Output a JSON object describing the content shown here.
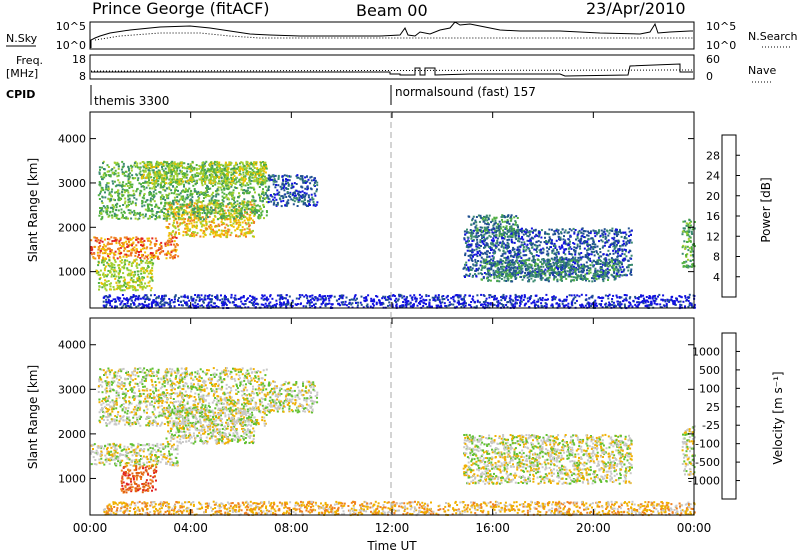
{
  "header": {
    "station": "Prince George (fitACF)",
    "beam": "Beam 00",
    "date": "23/Apr/2010"
  },
  "top_panels": {
    "nsky_label": "N.Sky",
    "nsky_ticks": [
      "10^5",
      "10^0"
    ],
    "nsearch_label": "N.Search",
    "nsearch_ticks": [
      "10^5",
      "10^0"
    ],
    "freq_label_1": "Freq.",
    "freq_label_2": "[MHz]",
    "freq_ticks": [
      "18",
      "8"
    ],
    "nave_label": "Nave",
    "nave_ticks": [
      "60",
      "0"
    ],
    "cpid_label": "CPID",
    "cpid_segments": [
      {
        "label": "themis 3300",
        "start_hour": 0
      },
      {
        "label": "normalsound (fast) 157",
        "start_hour": 12
      }
    ]
  },
  "chart_data": [
    {
      "type": "heatmap",
      "name": "power",
      "ylabel": "Slant Range [km]",
      "ylim": [
        180,
        4600
      ],
      "yticks": [
        "1000",
        "2000",
        "3000",
        "4000"
      ],
      "xlim": [
        0,
        24
      ],
      "colorbar_label": "Power [dB]",
      "colorbar_ticks": [
        "4",
        "8",
        "12",
        "16",
        "20",
        "24",
        "28"
      ],
      "colorbar_colors": [
        "#1010e0",
        "#205090",
        "#3a8a70",
        "#50b040",
        "#a0d030",
        "#f0c000",
        "#f08020",
        "#e02020"
      ],
      "regions": [
        {
          "x0": 0.0,
          "x1": 3.5,
          "y0": 1300,
          "y1": 1800,
          "level": 6
        },
        {
          "x0": 3.0,
          "x1": 6.5,
          "y0": 1800,
          "y1": 2600,
          "level": 5
        },
        {
          "x0": 0.3,
          "x1": 7.0,
          "y0": 2200,
          "y1": 3500,
          "level": 3
        },
        {
          "x0": 2.0,
          "x1": 7.0,
          "y0": 3000,
          "y1": 3500,
          "level": 4
        },
        {
          "x0": 7.0,
          "x1": 9.0,
          "y0": 2500,
          "y1": 3200,
          "level": 1
        },
        {
          "x0": 0.2,
          "x1": 2.5,
          "y0": 600,
          "y1": 1300,
          "level": 4
        },
        {
          "x0": 14.8,
          "x1": 21.5,
          "y0": 900,
          "y1": 2000,
          "level": 1
        },
        {
          "x0": 15.5,
          "x1": 21.0,
          "y0": 800,
          "y1": 1300,
          "level": 2
        },
        {
          "x0": 15.0,
          "x1": 17.0,
          "y0": 1800,
          "y1": 2300,
          "level": 2
        },
        {
          "x0": 23.5,
          "x1": 24.0,
          "y0": 1100,
          "y1": 2200,
          "level": 3
        },
        {
          "x0": 0.5,
          "x1": 24.0,
          "y0": 200,
          "y1": 500,
          "level": 0
        }
      ]
    },
    {
      "type": "heatmap",
      "name": "velocity",
      "ylabel": "Slant Range [km]",
      "ylim": [
        180,
        4600
      ],
      "yticks": [
        "1000",
        "2000",
        "3000",
        "4000"
      ],
      "xlim": [
        0,
        24
      ],
      "xticks": [
        "00:00",
        "04:00",
        "08:00",
        "12:00",
        "16:00",
        "20:00",
        "00:00"
      ],
      "xlabel": "Time UT",
      "colorbar_label": "Velocity [m s⁻¹]",
      "colorbar_ticks": [
        "1000",
        "500",
        "100",
        "25",
        "-25",
        "-100",
        "-500",
        "-1000"
      ],
      "colorbar_colors": [
        "#1010e0",
        "#306080",
        "#50a050",
        "#60c030",
        "#c8c8c8",
        "#f0b000",
        "#f08020",
        "#e06010",
        "#e02020"
      ],
      "regions": [
        {
          "x0": 0.0,
          "x1": 3.5,
          "y0": 1300,
          "y1": 1800,
          "level": 4
        },
        {
          "x0": 3.0,
          "x1": 6.5,
          "y0": 1800,
          "y1": 2600,
          "level": 4
        },
        {
          "x0": 0.3,
          "x1": 7.0,
          "y0": 2200,
          "y1": 3500,
          "level": 4
        },
        {
          "x0": 7.0,
          "x1": 9.0,
          "y0": 2500,
          "y1": 3200,
          "level": 4
        },
        {
          "x0": 1.2,
          "x1": 2.6,
          "y0": 700,
          "y1": 1300,
          "level": 7
        },
        {
          "x0": 14.8,
          "x1": 21.5,
          "y0": 900,
          "y1": 2000,
          "level": 4
        },
        {
          "x0": 23.5,
          "x1": 24.0,
          "y0": 1100,
          "y1": 2200,
          "level": 4
        },
        {
          "x0": 0.5,
          "x1": 24.0,
          "y0": 200,
          "y1": 500,
          "level": 5
        }
      ]
    }
  ]
}
